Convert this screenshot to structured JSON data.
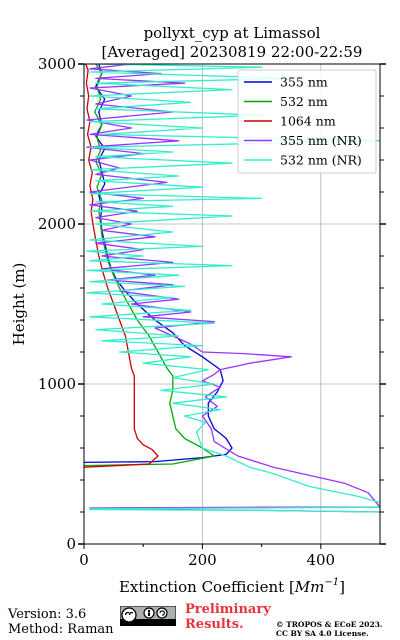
{
  "chart_data": {
    "type": "line",
    "title": "pollyxt_cyp at Limassol",
    "subtitle": "[Averaged] 20230819 22:00-22:59",
    "xlabel": "Extinction Coefficient",
    "xlabel_unit": "Mm",
    "xlabel_unit_exp": "−1",
    "ylabel": "Height (m)",
    "xlim": [
      0,
      500
    ],
    "ylim": [
      0,
      3000
    ],
    "xticks": [
      0,
      200,
      400
    ],
    "yticks": [
      0,
      1000,
      2000,
      3000
    ],
    "xtick_labels": [
      "0",
      "200",
      "400"
    ],
    "ytick_labels": [
      "0",
      "1000",
      "2000",
      "3000"
    ],
    "grid": true,
    "legend_position": "top-right",
    "series": [
      {
        "name": "355 nm",
        "color": "#0000dd",
        "points": [
          [
            0,
            510
          ],
          [
            120,
            515
          ],
          [
            200,
            540
          ],
          [
            240,
            560
          ],
          [
            250,
            600
          ],
          [
            240,
            660
          ],
          [
            220,
            720
          ],
          [
            210,
            800
          ],
          [
            210,
            880
          ],
          [
            225,
            950
          ],
          [
            235,
            1020
          ],
          [
            230,
            1090
          ],
          [
            200,
            1170
          ],
          [
            170,
            1240
          ],
          [
            150,
            1320
          ],
          [
            120,
            1400
          ],
          [
            90,
            1500
          ],
          [
            70,
            1580
          ],
          [
            55,
            1650
          ],
          [
            45,
            1730
          ],
          [
            40,
            1800
          ],
          [
            35,
            1880
          ],
          [
            30,
            1960
          ],
          [
            28,
            2040
          ],
          [
            30,
            2100
          ],
          [
            25,
            2180
          ],
          [
            35,
            2250
          ],
          [
            30,
            2330
          ],
          [
            25,
            2400
          ],
          [
            35,
            2470
          ],
          [
            20,
            2550
          ],
          [
            30,
            2620
          ],
          [
            25,
            2700
          ],
          [
            35,
            2780
          ],
          [
            20,
            2860
          ],
          [
            30,
            2940
          ],
          [
            25,
            3000
          ]
        ]
      },
      {
        "name": "532 nm",
        "color": "#00aa00",
        "points": [
          [
            0,
            490
          ],
          [
            150,
            500
          ],
          [
            220,
            550
          ],
          [
            200,
            600
          ],
          [
            170,
            660
          ],
          [
            155,
            720
          ],
          [
            150,
            800
          ],
          [
            145,
            880
          ],
          [
            150,
            960
          ],
          [
            150,
            1050
          ],
          [
            140,
            1100
          ],
          [
            125,
            1200
          ],
          [
            110,
            1300
          ],
          [
            90,
            1400
          ],
          [
            75,
            1500
          ],
          [
            60,
            1600
          ],
          [
            50,
            1680
          ],
          [
            40,
            1770
          ],
          [
            35,
            1850
          ],
          [
            30,
            1930
          ],
          [
            28,
            2000
          ],
          [
            25,
            2080
          ],
          [
            30,
            2150
          ],
          [
            22,
            2230
          ],
          [
            30,
            2310
          ],
          [
            20,
            2390
          ],
          [
            28,
            2460
          ],
          [
            22,
            2540
          ],
          [
            30,
            2620
          ],
          [
            18,
            2700
          ],
          [
            28,
            2780
          ],
          [
            22,
            2860
          ],
          [
            30,
            2940
          ],
          [
            20,
            3000
          ]
        ]
      },
      {
        "name": "1064 nm",
        "color": "#cc0000",
        "points": [
          [
            0,
            480
          ],
          [
            110,
            500
          ],
          [
            125,
            550
          ],
          [
            115,
            590
          ],
          [
            100,
            620
          ],
          [
            90,
            660
          ],
          [
            85,
            720
          ],
          [
            85,
            800
          ],
          [
            85,
            880
          ],
          [
            85,
            960
          ],
          [
            85,
            1050
          ],
          [
            80,
            1100
          ],
          [
            75,
            1200
          ],
          [
            70,
            1300
          ],
          [
            60,
            1400
          ],
          [
            50,
            1500
          ],
          [
            40,
            1600
          ],
          [
            32,
            1700
          ],
          [
            25,
            1800
          ],
          [
            20,
            1900
          ],
          [
            15,
            2000
          ],
          [
            12,
            2080
          ],
          [
            15,
            2150
          ],
          [
            10,
            2240
          ],
          [
            14,
            2320
          ],
          [
            8,
            2400
          ],
          [
            12,
            2480
          ],
          [
            6,
            2560
          ],
          [
            10,
            2640
          ],
          [
            5,
            2720
          ],
          [
            8,
            2800
          ],
          [
            4,
            2880
          ],
          [
            7,
            2960
          ],
          [
            3,
            3000
          ]
        ]
      },
      {
        "name": "355 nm (NR)",
        "color": "#9933ff",
        "points": [
          [
            500,
            200
          ],
          [
            300,
            210
          ],
          [
            10,
            220
          ],
          [
            10,
            225
          ],
          [
            300,
            230
          ],
          [
            500,
            230
          ],
          [
            480,
            320
          ],
          [
            440,
            380
          ],
          [
            380,
            430
          ],
          [
            320,
            480
          ],
          [
            260,
            550
          ],
          [
            220,
            640
          ],
          [
            215,
            720
          ],
          [
            200,
            800
          ],
          [
            225,
            860
          ],
          [
            205,
            920
          ],
          [
            230,
            980
          ],
          [
            200,
            1020
          ],
          [
            220,
            1060
          ],
          [
            230,
            1090
          ],
          [
            280,
            1130
          ],
          [
            350,
            1170
          ],
          [
            270,
            1190
          ],
          [
            200,
            1200
          ],
          [
            180,
            1250
          ],
          [
            150,
            1300
          ],
          [
            120,
            1350
          ],
          [
            220,
            1390
          ],
          [
            100,
            1420
          ],
          [
            180,
            1450
          ],
          [
            80,
            1500
          ],
          [
            160,
            1530
          ],
          [
            60,
            1580
          ],
          [
            150,
            1620
          ],
          [
            40,
            1650
          ],
          [
            120,
            1680
          ],
          [
            30,
            1720
          ],
          [
            150,
            1760
          ],
          [
            30,
            1800
          ],
          [
            100,
            1840
          ],
          [
            20,
            1880
          ],
          [
            120,
            1920
          ],
          [
            30,
            1960
          ],
          [
            80,
            2000
          ],
          [
            20,
            2040
          ],
          [
            90,
            2080
          ],
          [
            10,
            2120
          ],
          [
            100,
            2160
          ],
          [
            10,
            2200
          ],
          [
            140,
            2260
          ],
          [
            20,
            2310
          ],
          [
            60,
            2350
          ],
          [
            10,
            2400
          ],
          [
            100,
            2440
          ],
          [
            5,
            2480
          ],
          [
            160,
            2520
          ],
          [
            10,
            2560
          ],
          [
            80,
            2600
          ],
          [
            5,
            2650
          ],
          [
            150,
            2700
          ],
          [
            20,
            2750
          ],
          [
            80,
            2800
          ],
          [
            10,
            2850
          ],
          [
            170,
            2880
          ],
          [
            20,
            2910
          ],
          [
            130,
            2940
          ],
          [
            10,
            2970
          ],
          [
            80,
            3000
          ]
        ]
      },
      {
        "name": "532 nm (NR)",
        "color": "#33eecc",
        "points": [
          [
            500,
            200
          ],
          [
            300,
            210
          ],
          [
            10,
            215
          ],
          [
            10,
            220
          ],
          [
            300,
            225
          ],
          [
            500,
            230
          ],
          [
            500,
            260
          ],
          [
            460,
            300
          ],
          [
            420,
            330
          ],
          [
            380,
            360
          ],
          [
            350,
            400
          ],
          [
            320,
            440
          ],
          [
            280,
            480
          ],
          [
            240,
            550
          ],
          [
            200,
            600
          ],
          [
            190,
            700
          ],
          [
            205,
            760
          ],
          [
            170,
            800
          ],
          [
            230,
            840
          ],
          [
            150,
            880
          ],
          [
            240,
            920
          ],
          [
            130,
            960
          ],
          [
            220,
            1000
          ],
          [
            150,
            1040
          ],
          [
            210,
            1090
          ],
          [
            100,
            1130
          ],
          [
            180,
            1170
          ],
          [
            60,
            1200
          ],
          [
            200,
            1240
          ],
          [
            30,
            1270
          ],
          [
            160,
            1300
          ],
          [
            20,
            1340
          ],
          [
            220,
            1380
          ],
          [
            10,
            1420
          ],
          [
            180,
            1460
          ],
          [
            30,
            1500
          ],
          [
            150,
            1540
          ],
          [
            5,
            1570
          ],
          [
            170,
            1610
          ],
          [
            10,
            1640
          ],
          [
            160,
            1680
          ],
          [
            5,
            1710
          ],
          [
            250,
            1740
          ],
          [
            10,
            1770
          ],
          [
            100,
            1800
          ],
          [
            5,
            1830
          ],
          [
            200,
            1860
          ],
          [
            10,
            1900
          ],
          [
            150,
            1950
          ],
          [
            20,
            2000
          ],
          [
            250,
            2050
          ],
          [
            10,
            2080
          ],
          [
            150,
            2110
          ],
          [
            20,
            2140
          ],
          [
            300,
            2160
          ],
          [
            10,
            2190
          ],
          [
            200,
            2230
          ],
          [
            20,
            2270
          ],
          [
            160,
            2300
          ],
          [
            10,
            2340
          ],
          [
            250,
            2380
          ],
          [
            20,
            2420
          ],
          [
            150,
            2450
          ],
          [
            10,
            2480
          ],
          [
            500,
            2520
          ],
          [
            30,
            2560
          ],
          [
            200,
            2600
          ],
          [
            10,
            2640
          ],
          [
            300,
            2680
          ],
          [
            20,
            2720
          ],
          [
            180,
            2760
          ],
          [
            10,
            2800
          ],
          [
            250,
            2840
          ],
          [
            20,
            2880
          ],
          [
            350,
            2910
          ],
          [
            10,
            2950
          ],
          [
            300,
            2980
          ],
          [
            20,
            3000
          ]
        ]
      }
    ]
  },
  "footer": {
    "version": "Version: 3.6",
    "method": "Method: Raman",
    "preliminary_line1": "Preliminary",
    "preliminary_line2": "Results.",
    "copyright_line1": "© TROPOS & ECoE 2023.",
    "copyright_line2": "CC BY SA 4.0 License."
  },
  "license_badge_icon": "cc-by-sa-icon"
}
